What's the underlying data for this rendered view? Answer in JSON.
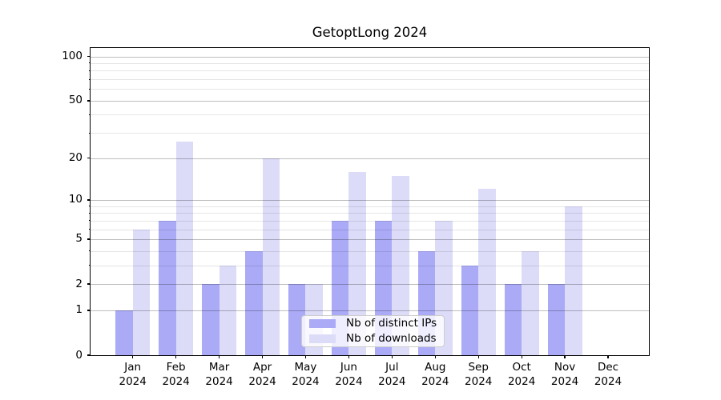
{
  "chart_data": {
    "type": "bar",
    "title": "GetoptLong 2024",
    "categories": [
      "Jan 2024",
      "Feb 2024",
      "Mar 2024",
      "Apr 2024",
      "May 2024",
      "Jun 2024",
      "Jul 2024",
      "Aug 2024",
      "Sep 2024",
      "Oct 2024",
      "Nov 2024",
      "Dec 2024"
    ],
    "series": [
      {
        "name": "Nb of distinct IPs",
        "color": "#aaaaf7",
        "values": [
          1,
          7,
          2,
          4,
          2,
          7,
          7,
          4,
          3,
          2,
          2,
          0
        ]
      },
      {
        "name": "Nb of downloads",
        "color": "#dcdcf9",
        "values": [
          6,
          26,
          3,
          20,
          2,
          16,
          15,
          7,
          12,
          4,
          9,
          0
        ]
      }
    ],
    "xlabel": "",
    "ylabel": "",
    "yscale": "log1p",
    "ylim": [
      0,
      114
    ],
    "y_major_ticks": [
      0,
      1,
      2,
      5,
      10,
      20,
      50,
      100
    ],
    "y_minor_ticks": [
      3,
      4,
      6,
      7,
      8,
      9,
      30,
      40,
      60,
      70,
      80,
      90
    ],
    "grid": true,
    "legend_position": "lower center"
  },
  "colors": {
    "background": "#ffffff",
    "axis": "#000000",
    "grid_major": "rgba(0,0,0,0.26)",
    "grid_minor": "rgba(0,0,0,0.10)",
    "legend_border": "#cccccc",
    "text": "#000000"
  }
}
